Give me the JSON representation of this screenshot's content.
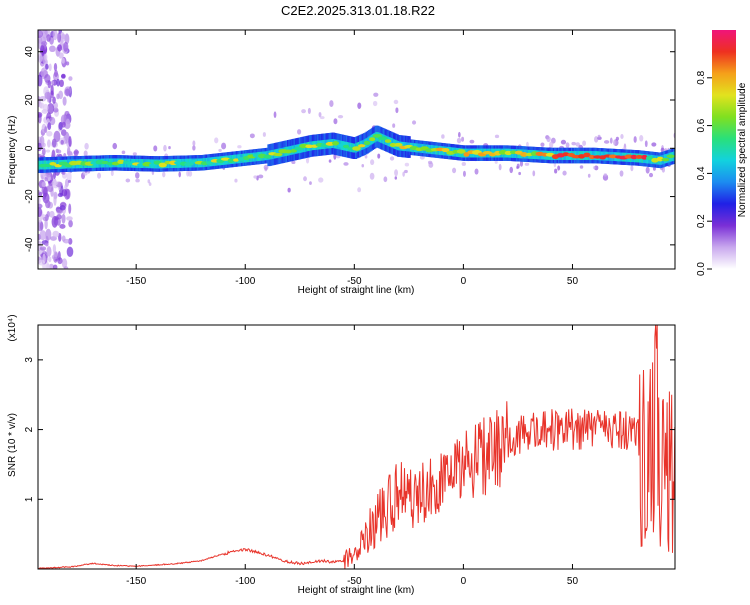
{
  "title": "C2E2.2025.313.01.18.R22",
  "chart_data": [
    {
      "type": "heatmap",
      "xlabel": "Height of straight line (km)",
      "ylabel": "Frequency (Hz)",
      "xlim": [
        -195,
        97
      ],
      "ylim": [
        -50,
        49
      ],
      "x_ticks": [
        -150,
        -100,
        -50,
        0,
        50
      ],
      "x_tick_labels": [
        "-150",
        "-100",
        "-50",
        "0",
        "50"
      ],
      "y_ticks": [
        -40,
        -20,
        0,
        20,
        40
      ],
      "y_tick_labels": [
        "-40",
        "-20",
        "0",
        "20",
        "40"
      ],
      "grid": false,
      "colorbar": {
        "label": "Normalized spectral amplitude",
        "range": [
          0,
          1
        ],
        "ticks": [
          0.0,
          0.2,
          0.4,
          0.6,
          0.8
        ],
        "tick_labels": [
          "0.0",
          "0.2",
          "0.4",
          "0.6",
          "0.8"
        ],
        "colors": [
          "#ffffff",
          "#c9a8ee",
          "#7a2fd6",
          "#2020e6",
          "#1c8cf0",
          "#12d2de",
          "#29e07a",
          "#80e020",
          "#e2e21e",
          "#f5a01a",
          "#ee3020",
          "#f0147a"
        ]
      },
      "ridge": {
        "x": [
          -195,
          -180,
          -160,
          -140,
          -120,
          -100,
          -90,
          -80,
          -70,
          -60,
          -50,
          -45,
          -40,
          -35,
          -30,
          -20,
          -10,
          0,
          20,
          40,
          60,
          80,
          90,
          97
        ],
        "frequency": [
          -7,
          -6.5,
          -6,
          -6.5,
          -6,
          -4,
          -3,
          -1,
          1,
          2,
          0,
          2,
          5,
          3,
          1,
          0,
          -1,
          -2,
          -2,
          -3,
          -3,
          -4,
          -5,
          -3
        ]
      }
    },
    {
      "type": "line",
      "xlabel": "Height of straight line (km)",
      "ylabel": "SNR (10 * v/v)",
      "y_multiplier": "(x10⁴)",
      "xlim": [
        -195,
        97
      ],
      "ylim": [
        0,
        3.5
      ],
      "x_ticks": [
        -150,
        -100,
        -50,
        0,
        50
      ],
      "x_tick_labels": [
        "-150",
        "-100",
        "-50",
        "0",
        "50"
      ],
      "y_ticks": [
        1,
        2,
        3
      ],
      "y_tick_labels": [
        "1",
        "2",
        "3"
      ],
      "grid": false,
      "series": [
        {
          "color": "#e8332a",
          "x": [
            -195,
            -180,
            -170,
            -160,
            -150,
            -140,
            -130,
            -120,
            -110,
            -100,
            -95,
            -90,
            -85,
            -80,
            -75,
            -70,
            -65,
            -60,
            -55,
            -50,
            -45,
            -40,
            -35,
            -30,
            -25,
            -20,
            -15,
            -10,
            -5,
            0,
            5,
            10,
            15,
            20,
            25,
            30,
            40,
            50,
            60,
            70,
            80,
            85,
            88,
            90,
            92,
            95,
            97
          ],
          "values": [
            0.01,
            0.03,
            0.08,
            0.05,
            0.04,
            0.06,
            0.08,
            0.12,
            0.22,
            0.28,
            0.25,
            0.2,
            0.15,
            0.1,
            0.08,
            0.09,
            0.12,
            0.1,
            0.12,
            0.2,
            0.45,
            0.7,
            0.95,
            1.05,
            0.95,
            1.05,
            1.15,
            1.25,
            1.35,
            1.45,
            1.55,
            1.62,
            1.7,
            1.82,
            1.9,
            1.95,
            2.0,
            2.0,
            2.02,
            2.0,
            2.02,
            2.05,
            2.1,
            2.0,
            1.7,
            1.5,
            1.4
          ]
        }
      ]
    }
  ]
}
